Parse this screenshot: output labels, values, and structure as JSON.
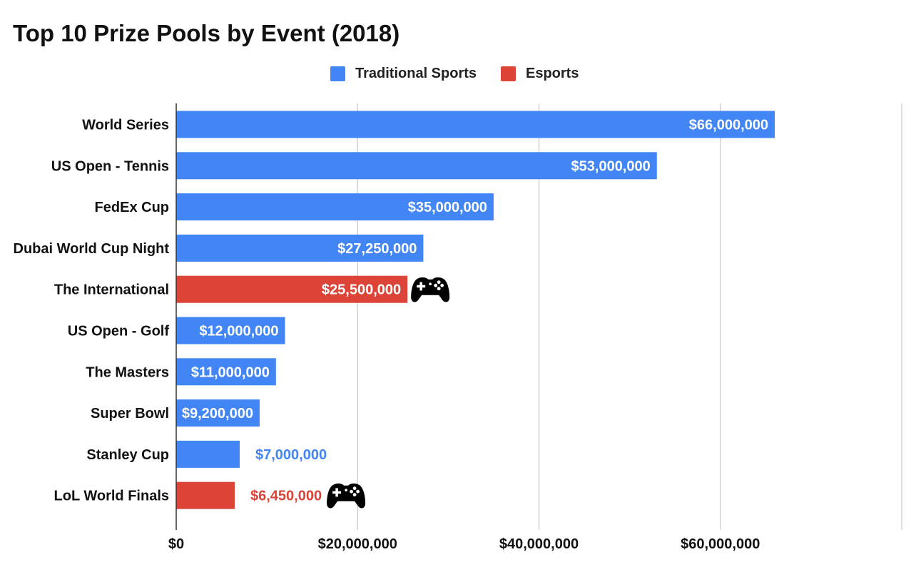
{
  "chart_data": {
    "type": "bar",
    "orientation": "horizontal",
    "title": "Top 10 Prize Pools by Event (2018)",
    "xlabel": "",
    "ylabel": "",
    "xlim": [
      0,
      80000000
    ],
    "grid": true,
    "legend_position": "top-center",
    "series": [
      {
        "name": "Traditional Sports",
        "color": "#4285f4"
      },
      {
        "name": "Esports",
        "color": "#db4437"
      }
    ],
    "categories": [
      "World Series",
      "US Open - Tennis",
      "FedEx Cup",
      "Dubai World Cup Night",
      "The International",
      "US Open - Golf",
      "The Masters",
      "Super Bowl",
      "Stanley Cup",
      "LoL World Finals"
    ],
    "values": [
      66000000,
      53000000,
      35000000,
      27250000,
      25500000,
      12000000,
      11000000,
      9200000,
      7000000,
      6450000
    ],
    "bar_series": [
      "Traditional Sports",
      "Traditional Sports",
      "Traditional Sports",
      "Traditional Sports",
      "Esports",
      "Traditional Sports",
      "Traditional Sports",
      "Traditional Sports",
      "Traditional Sports",
      "Esports"
    ],
    "data_labels": [
      "$66,000,000",
      "$53,000,000",
      "$35,000,000",
      "$27,250,000",
      "$25,500,000",
      "$12,000,000",
      "$11,000,000",
      "$9,200,000",
      "$7,000,000",
      "$6,450,000"
    ],
    "label_placement": [
      "inside",
      "inside",
      "inside",
      "inside",
      "inside",
      "inside",
      "inside",
      "inside",
      "outside",
      "outside"
    ],
    "annotations": [
      {
        "category": "The International",
        "icon": "gamepad-icon"
      },
      {
        "category": "LoL World Finals",
        "icon": "gamepad-icon"
      }
    ],
    "x_ticks": [
      0,
      20000000,
      40000000,
      60000000
    ],
    "x_tick_labels": [
      "$0",
      "$20,000,000",
      "$40,000,000",
      "$60,000,000"
    ]
  }
}
